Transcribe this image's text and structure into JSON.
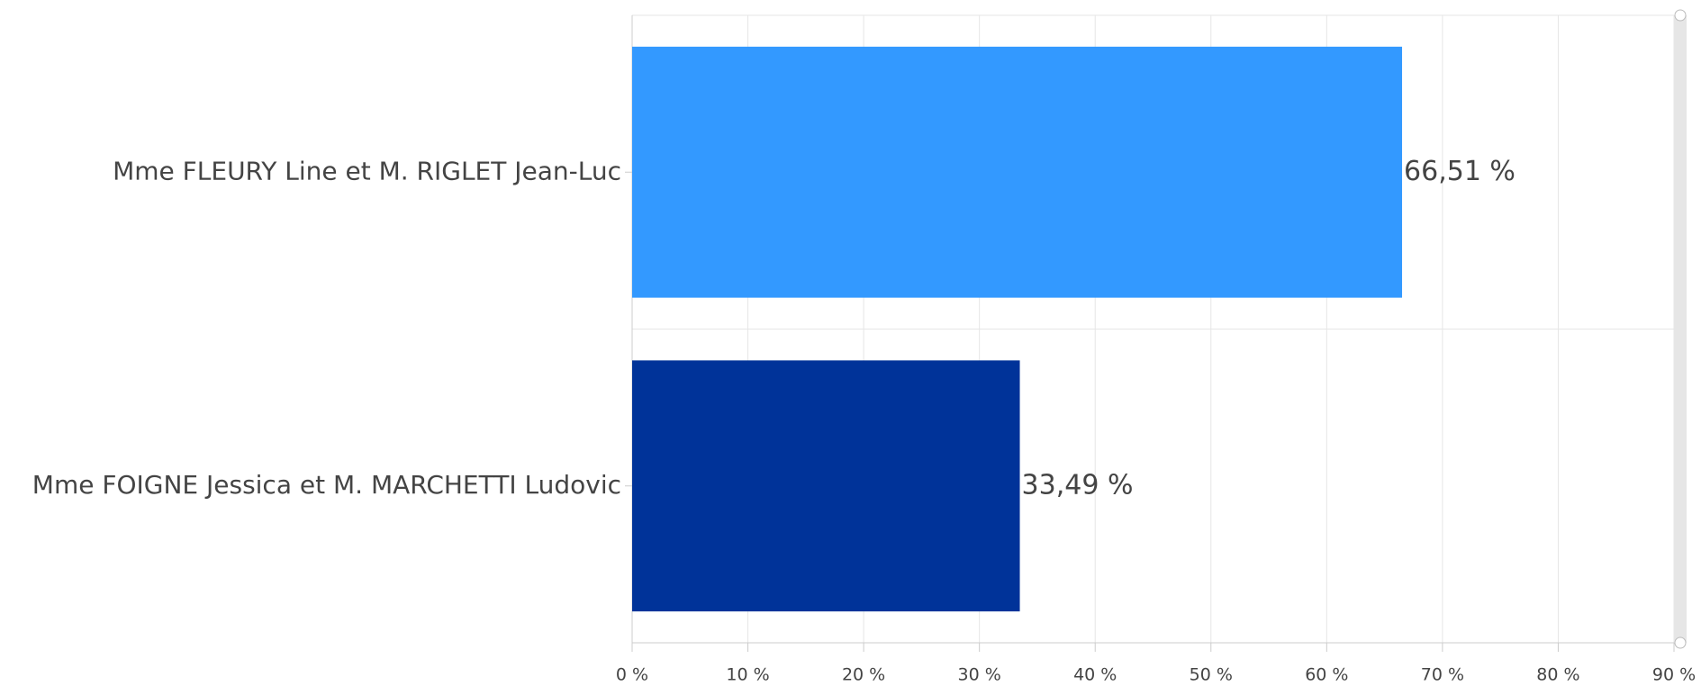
{
  "chart_data": {
    "type": "bar",
    "orientation": "horizontal",
    "categories": [
      "Mme FLEURY Line et M. RIGLET Jean-Luc",
      "Mme FOIGNE Jessica et M. MARCHETTI Ludovic"
    ],
    "values": [
      66.51,
      33.49
    ],
    "value_labels": [
      "66,51 %",
      "33,49 %"
    ],
    "colors": [
      "#3399ff",
      "#003399"
    ],
    "xlim": [
      0,
      90
    ],
    "xticks": [
      {
        "value": 0,
        "label": "0 %"
      },
      {
        "value": 10,
        "label": "10 %"
      },
      {
        "value": 20,
        "label": "20 %"
      },
      {
        "value": 30,
        "label": "30 %"
      },
      {
        "value": 40,
        "label": "40 %"
      },
      {
        "value": 50,
        "label": "50 %"
      },
      {
        "value": 60,
        "label": "60 %"
      },
      {
        "value": 70,
        "label": "70 %"
      },
      {
        "value": 80,
        "label": "80 %"
      },
      {
        "value": 90,
        "label": "90 %"
      }
    ],
    "grid": true
  }
}
